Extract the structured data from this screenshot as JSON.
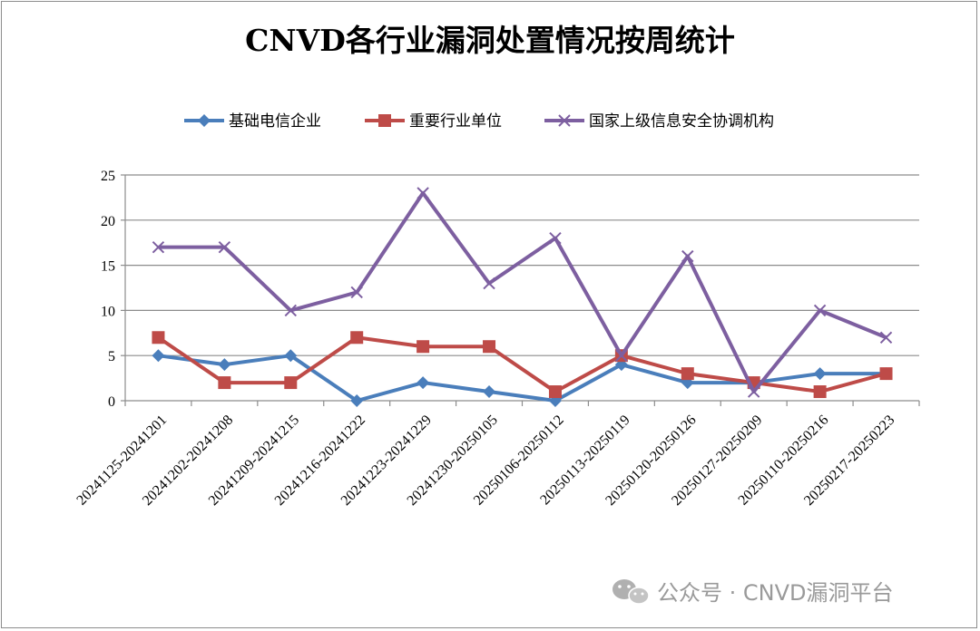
{
  "chart_data": {
    "type": "line",
    "title": "CNVD各行业漏洞处置情况按周统计",
    "xlabel": "",
    "ylabel": "",
    "ylim": [
      0,
      25
    ],
    "yticks": [
      0,
      5,
      10,
      15,
      20,
      25
    ],
    "grid": true,
    "legend_position": "top",
    "categories": [
      "20241125-20241201",
      "20241202-20241208",
      "20241209-20241215",
      "20241216-20241222",
      "20241223-20241229",
      "20241230-20250105",
      "20250106-20250112",
      "20250113-20250119",
      "20250120-20250126",
      "20250127-20250209",
      "20250110-20250216",
      "20250217-20250223"
    ],
    "series": [
      {
        "name": "基础电信企业",
        "color": "#4a7ebb",
        "marker": "diamond",
        "values": [
          5,
          4,
          5,
          0,
          2,
          1,
          0,
          4,
          2,
          2,
          3,
          3
        ]
      },
      {
        "name": "重要行业单位",
        "color": "#be4b48",
        "marker": "square",
        "values": [
          7,
          2,
          2,
          7,
          6,
          6,
          1,
          5,
          3,
          2,
          1,
          3
        ]
      },
      {
        "name": "国家上级信息安全协调机构",
        "color": "#7d5fa0",
        "marker": "x",
        "values": [
          17,
          17,
          10,
          12,
          23,
          13,
          18,
          5,
          16,
          1,
          10,
          7
        ]
      }
    ]
  },
  "watermark": {
    "text": "公众号 · CNVD漏洞平台",
    "icon": "wechat-icon"
  }
}
